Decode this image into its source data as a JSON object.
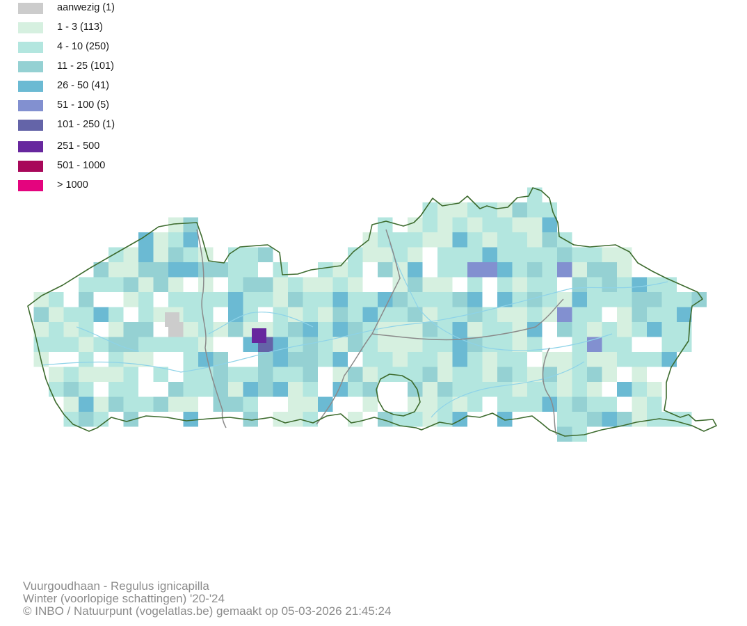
{
  "legend": [
    {
      "label": "aanwezig (1)",
      "color": "#cccccc"
    },
    {
      "label": "1 - 3 (113)",
      "color": "#d6f0e0"
    },
    {
      "label": "4 - 10 (250)",
      "color": "#b3e6df"
    },
    {
      "label": "11 - 25 (101)",
      "color": "#95d1d3"
    },
    {
      "label": "26 - 50 (41)",
      "color": "#6bbad3"
    },
    {
      "label": "51 - 100 (5)",
      "color": "#8290d0"
    },
    {
      "label": "101 - 250 (1)",
      "color": "#6464a8"
    },
    {
      "label": "251 - 500",
      "color": "#67279e"
    },
    {
      "label": "501 - 1000",
      "color": "#a8085a"
    },
    {
      "label": "> 1000",
      "color": "#e4047e"
    }
  ],
  "map": {
    "border_color": "#3d6b2e",
    "province_border_color": "#8a8a8a",
    "river_color": "#8ed3e8"
  },
  "caption": {
    "species": "Vuurgoudhaan - Regulus ignicapilla",
    "period": "Winter (voorlopige schattingen) '20-'24",
    "credit": "© INBO / Natuurpunt (vogelatlas.be) gemaakt op 05-03-2026 21:45:24"
  }
}
